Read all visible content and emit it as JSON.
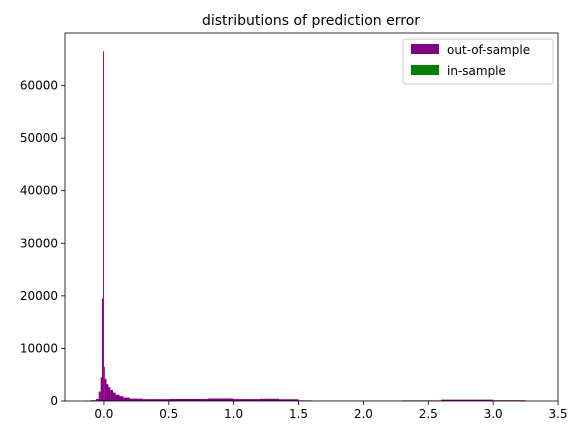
{
  "chart_data": {
    "type": "bar",
    "subtype": "histogram",
    "title": "distributions of prediction error",
    "xlabel": "",
    "ylabel": "",
    "xlim": [
      -0.3,
      3.5
    ],
    "ylim": [
      0,
      70000
    ],
    "xticks": [
      0.0,
      0.5,
      1.0,
      1.5,
      2.0,
      2.5,
      3.0,
      3.5
    ],
    "xtick_labels": [
      "0.0",
      "0.5",
      "1.0",
      "1.5",
      "2.0",
      "2.5",
      "3.0",
      "3.5"
    ],
    "yticks": [
      0,
      10000,
      20000,
      30000,
      40000,
      50000,
      60000
    ],
    "ytick_labels": [
      "0",
      "10000",
      "20000",
      "30000",
      "40000",
      "50000",
      "60000"
    ],
    "grid": false,
    "legend": {
      "placement": "upper-right"
    },
    "series": [
      {
        "name": "out-of-sample",
        "color": "#800080",
        "bins": [
          {
            "x0": -0.14,
            "x1": -0.1,
            "count": 80
          },
          {
            "x0": -0.1,
            "x1": -0.06,
            "count": 150
          },
          {
            "x0": -0.06,
            "x1": -0.04,
            "count": 400
          },
          {
            "x0": -0.04,
            "x1": -0.025,
            "count": 1800
          },
          {
            "x0": -0.025,
            "x1": -0.015,
            "count": 4500
          },
          {
            "x0": -0.015,
            "x1": -0.007,
            "count": 19500
          },
          {
            "x0": -0.007,
            "x1": 0.0,
            "count": 66500
          },
          {
            "x0": 0.0,
            "x1": 0.007,
            "count": 6500
          },
          {
            "x0": 0.007,
            "x1": 0.02,
            "count": 4200
          },
          {
            "x0": 0.02,
            "x1": 0.035,
            "count": 3200
          },
          {
            "x0": 0.035,
            "x1": 0.05,
            "count": 2600
          },
          {
            "x0": 0.05,
            "x1": 0.07,
            "count": 2100
          },
          {
            "x0": 0.07,
            "x1": 0.09,
            "count": 1600
          },
          {
            "x0": 0.09,
            "x1": 0.12,
            "count": 1200
          },
          {
            "x0": 0.12,
            "x1": 0.15,
            "count": 900
          },
          {
            "x0": 0.15,
            "x1": 0.2,
            "count": 650
          },
          {
            "x0": 0.2,
            "x1": 0.3,
            "count": 450
          },
          {
            "x0": 0.3,
            "x1": 0.5,
            "count": 350
          },
          {
            "x0": 0.5,
            "x1": 0.8,
            "count": 380
          },
          {
            "x0": 0.8,
            "x1": 1.0,
            "count": 480
          },
          {
            "x0": 1.0,
            "x1": 1.2,
            "count": 360
          },
          {
            "x0": 1.2,
            "x1": 1.35,
            "count": 420
          },
          {
            "x0": 1.35,
            "x1": 1.5,
            "count": 330
          },
          {
            "x0": 1.5,
            "x1": 1.6,
            "count": 120
          },
          {
            "x0": 1.6,
            "x1": 2.3,
            "count": 60
          },
          {
            "x0": 2.3,
            "x1": 2.6,
            "count": 120
          },
          {
            "x0": 2.6,
            "x1": 3.0,
            "count": 260
          },
          {
            "x0": 3.0,
            "x1": 3.25,
            "count": 150
          }
        ]
      },
      {
        "name": "in-sample",
        "color": "#008000",
        "bins": []
      }
    ]
  }
}
